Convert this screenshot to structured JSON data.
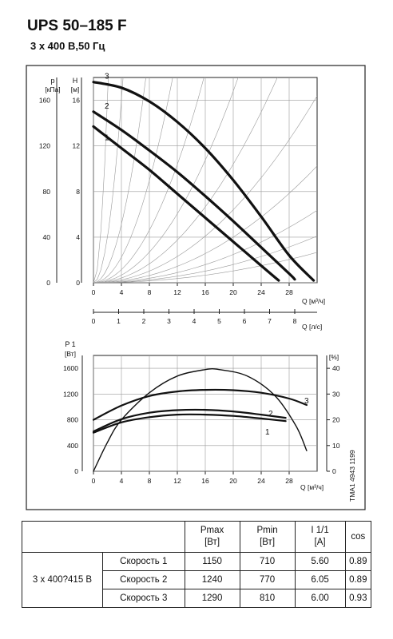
{
  "header": {
    "title": "UPS 50–185 F",
    "subtitle": "3 x 400 В,50 Гц"
  },
  "colors": {
    "curve": "#111111",
    "system_curve": "#999999",
    "grid": "#9a9a9a",
    "frame": "#222222"
  },
  "chart_data": [
    {
      "type": "line",
      "name": "pump-head-curves",
      "y_left_label": [
        "p",
        "[кПа]"
      ],
      "y_right_label": [
        "H",
        "[м]"
      ],
      "x_label": "Q [м³/ч]",
      "x2_label": "Q [л/с]",
      "xlim": [
        0,
        32
      ],
      "ylim": [
        0,
        18
      ],
      "x_ticks": [
        "0",
        "4",
        "8",
        "12",
        "16",
        "20",
        "24",
        "28"
      ],
      "y_ticks": [
        "0",
        "4",
        "8",
        "12",
        "16"
      ],
      "y_left_ticks": [
        "0",
        "40",
        "80",
        "120",
        "160"
      ],
      "x2_ticks": [
        "0",
        "1",
        "2",
        "3",
        "4",
        "5",
        "6",
        "7",
        "8"
      ],
      "series": [
        {
          "name": "1",
          "x": [
            0,
            4,
            8,
            12,
            16,
            20,
            24,
            26.5
          ],
          "y": [
            13.7,
            11.8,
            9.9,
            7.8,
            5.7,
            3.6,
            1.5,
            0.2
          ]
        },
        {
          "name": "2",
          "x": [
            0,
            4,
            8,
            12,
            16,
            20,
            24,
            28,
            28.8
          ],
          "y": [
            15.0,
            13.4,
            11.6,
            9.7,
            7.6,
            5.4,
            3.1,
            0.8,
            0.3
          ]
        },
        {
          "name": "3",
          "x": [
            0,
            4,
            8,
            12,
            16,
            20,
            24,
            28,
            31.5
          ],
          "y": [
            17.6,
            17.1,
            15.9,
            14.1,
            11.8,
            9.0,
            5.8,
            2.4,
            0.2
          ]
        }
      ]
    },
    {
      "type": "line",
      "name": "power-efficiency-curves",
      "y_left_label": [
        "P 1",
        "[Вт]"
      ],
      "y_right_label": "[%]",
      "x_label": "Q [м³/ч]",
      "xlim": [
        0,
        32
      ],
      "ylim": [
        0,
        1800
      ],
      "y2lim": [
        0,
        45
      ],
      "x_ticks": [
        "0",
        "4",
        "8",
        "12",
        "16",
        "20",
        "24",
        "28"
      ],
      "y_ticks": [
        "0",
        "400",
        "800",
        "1200",
        "1600"
      ],
      "y2_ticks": [
        "0",
        "10",
        "20",
        "30",
        "40"
      ],
      "series": [
        {
          "name": "1",
          "x": [
            0,
            4,
            8,
            12,
            16,
            20,
            24,
            27.5
          ],
          "y": [
            600,
            760,
            840,
            880,
            880,
            860,
            820,
            780
          ]
        },
        {
          "name": "2",
          "x": [
            0,
            4,
            8,
            12,
            16,
            20,
            24,
            27.5
          ],
          "y": [
            620,
            810,
            910,
            950,
            955,
            930,
            880,
            830
          ]
        },
        {
          "name": "3",
          "x": [
            0,
            4,
            8,
            12,
            16,
            20,
            24,
            28,
            30.5
          ],
          "y": [
            800,
            1020,
            1170,
            1240,
            1265,
            1260,
            1220,
            1130,
            1030
          ]
        },
        {
          "name": "efficiency",
          "x": [
            0,
            2,
            4,
            8,
            12,
            16,
            18,
            22,
            26,
            29,
            30.5
          ],
          "y": [
            0,
            450,
            800,
            1220,
            1480,
            1580,
            1580,
            1480,
            1170,
            700,
            320
          ]
        }
      ]
    }
  ],
  "stamp": "TMA1 4943 1199",
  "table": {
    "headers": {
      "pmax": [
        "Pmax",
        "[Вт]"
      ],
      "pmin": [
        "Pmin",
        "[Вт]"
      ],
      "current": [
        "I 1/1",
        "[A]"
      ],
      "cos": "cos"
    },
    "voltage": "3 x 400?415 В",
    "rows": [
      {
        "speed": "Скорость 1",
        "pmax": "1150",
        "pmin": "710",
        "current": "5.60",
        "cos": "0.89"
      },
      {
        "speed": "Скорость 2",
        "pmax": "1240",
        "pmin": "770",
        "current": "6.05",
        "cos": "0.89"
      },
      {
        "speed": "Скорость 3",
        "pmax": "1290",
        "pmin": "810",
        "current": "6.00",
        "cos": "0.93"
      }
    ]
  }
}
